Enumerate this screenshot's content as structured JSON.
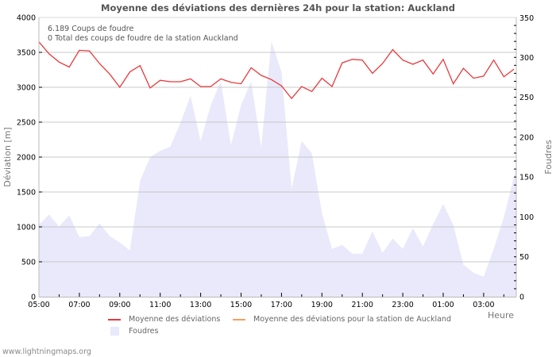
{
  "title": "Moyenne des déviations des dernières 24h pour la station: Auckland",
  "info_lines": [
    "6.189  Coups de foudre",
    "0 Total des coups de foudre de la station Auckland"
  ],
  "footer": "www.lightningmaps.org",
  "legend": {
    "items": [
      {
        "label": "Moyenne des déviations",
        "color": "#e8393c",
        "kind": "line"
      },
      {
        "label": "Moyenne des déviations pour la station de Auckland",
        "color": "#f5a05a",
        "kind": "line"
      },
      {
        "label": "Foudres",
        "color": "#e9e9fb",
        "kind": "area"
      }
    ]
  },
  "colors": {
    "deviation_line": "#e8393c",
    "lightning_area": "#e9e9fb",
    "grid": "#c8c8c8",
    "axis": "#bbbbbb"
  },
  "chart_data": {
    "type": "line",
    "title": "Moyenne des déviations des dernières 24h pour la station: Auckland",
    "xlabel": "Heure",
    "ylabel": "Déviation  [m]",
    "y2label": "Foudres",
    "ylim": [
      0,
      4000
    ],
    "y2lim": [
      0,
      350
    ],
    "yticks": [
      0,
      500,
      1000,
      1500,
      2000,
      2500,
      3000,
      3500,
      4000
    ],
    "y2ticks": [
      0,
      50,
      100,
      150,
      200,
      250,
      300,
      350
    ],
    "xticks": [
      "05:00",
      "07:00",
      "09:00",
      "11:00",
      "13:00",
      "15:00",
      "17:00",
      "19:00",
      "21:00",
      "23:00",
      "01:00",
      "03:00"
    ],
    "grid": true,
    "legend_position": "bottom",
    "series": [
      {
        "name": "Moyenne des déviations",
        "axis": "left",
        "type": "line",
        "x_hours_from_0500": [
          0,
          0.5,
          1,
          1.5,
          2,
          2.5,
          3,
          3.5,
          4,
          4.5,
          5,
          5.5,
          6,
          6.5,
          7,
          7.5,
          8,
          8.5,
          9,
          9.5,
          10,
          10.5,
          11,
          11.5,
          12,
          12.5,
          13,
          13.5,
          14,
          14.5,
          15,
          15.5,
          16,
          16.5,
          17,
          17.5,
          18,
          18.5,
          19,
          19.5,
          20,
          20.5,
          21,
          21.5,
          22,
          22.5,
          23,
          23.5
        ],
        "values": [
          3650,
          3480,
          3360,
          3290,
          3530,
          3520,
          3340,
          3190,
          3000,
          3220,
          3310,
          2990,
          3100,
          3080,
          3080,
          3120,
          3010,
          3010,
          3120,
          3070,
          3050,
          3280,
          3170,
          3110,
          3020,
          2840,
          3010,
          2940,
          3130,
          3010,
          3350,
          3400,
          3390,
          3200,
          3340,
          3540,
          3390,
          3330,
          3390,
          3190,
          3400,
          3050,
          3270,
          3130,
          3160,
          3390,
          3150,
          3260
        ]
      },
      {
        "name": "Moyenne des déviations pour la station de Auckland",
        "axis": "left",
        "type": "line",
        "values": []
      },
      {
        "name": "Foudres",
        "axis": "right",
        "type": "area",
        "x_hours_from_0500": [
          0,
          0.5,
          1,
          1.5,
          2,
          2.5,
          3,
          3.5,
          4,
          4.5,
          5,
          5.5,
          6,
          6.5,
          7,
          7.5,
          8,
          8.5,
          9,
          9.5,
          10,
          10.5,
          11,
          11.5,
          12,
          12.5,
          13,
          13.5,
          14,
          14.5,
          15,
          15.5,
          16,
          16.5,
          17,
          17.5,
          18,
          18.5,
          19,
          19.5,
          20,
          20.5,
          21,
          21.5,
          22,
          22.5,
          23,
          23.5
        ],
        "values": [
          90,
          103,
          88,
          102,
          75,
          76,
          92,
          76,
          68,
          58,
          145,
          175,
          183,
          188,
          218,
          252,
          195,
          240,
          270,
          190,
          240,
          270,
          187,
          320,
          282,
          135,
          195,
          180,
          105,
          60,
          65,
          54,
          54,
          82,
          55,
          73,
          60,
          86,
          63,
          91,
          116,
          90,
          40,
          30,
          25,
          60,
          100,
          150
        ]
      }
    ]
  }
}
